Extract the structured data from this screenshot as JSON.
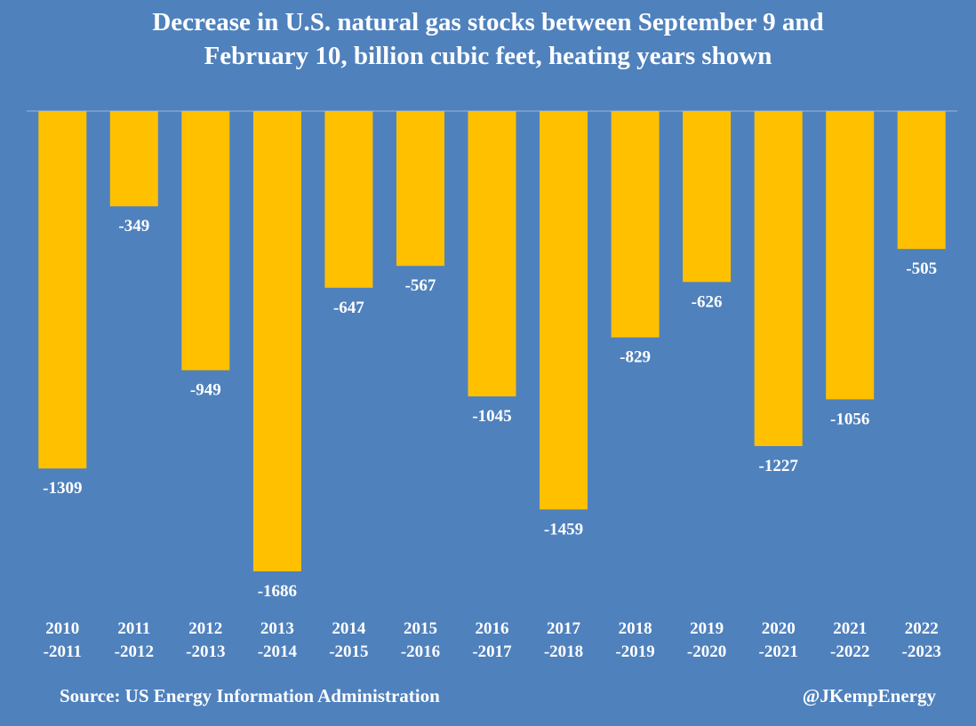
{
  "chart_data": {
    "type": "bar",
    "title_line1": "Decrease in U.S. natural gas stocks between September 9 and",
    "title_line2": "February 10, billion cubic feet, heating years shown",
    "categories": [
      [
        "2010",
        "-2011"
      ],
      [
        "2011",
        "-2012"
      ],
      [
        "2012",
        "-2013"
      ],
      [
        "2013",
        "-2014"
      ],
      [
        "2014",
        "-2015"
      ],
      [
        "2015",
        "-2016"
      ],
      [
        "2016",
        "-2017"
      ],
      [
        "2017",
        "-2018"
      ],
      [
        "2018",
        "-2019"
      ],
      [
        "2019",
        "-2020"
      ],
      [
        "2020",
        "-2021"
      ],
      [
        "2021",
        "-2022"
      ],
      [
        "2022",
        "-2023"
      ]
    ],
    "values": [
      -1309,
      -349,
      -949,
      -1686,
      -647,
      -567,
      -1045,
      -1459,
      -829,
      -626,
      -1227,
      -1056,
      -505
    ],
    "ylim": [
      -1686,
      0
    ],
    "bar_color": "#ffc000",
    "background_color": "#4f81bd"
  },
  "footer": {
    "source": "Source: US Energy Information Administration",
    "handle": "@JKempEnergy"
  }
}
